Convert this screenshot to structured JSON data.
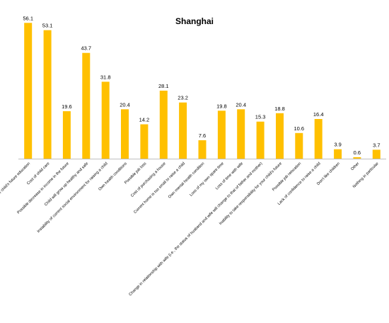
{
  "chart_data": {
    "type": "bar",
    "title": "Shanghai",
    "xlabel": "",
    "ylabel": "",
    "ylim": [
      0,
      60
    ],
    "grid": false,
    "legend": "none",
    "bar_color": "#FFC000",
    "axis_color": "#BFBFBF",
    "categories": [
      "High cost of child's future education",
      "Cost of child care",
      "Possible decrease in income in the future",
      "Child will grow up healthy and safe",
      "Instability of current social environment for raising a child",
      "Own health conditions",
      "Possible job loss",
      "Cost of purchasing a house",
      "Current home is too small to raise a child",
      "Own mental health condition",
      "Loss of my own spare time",
      "Loss of time with wife",
      "Change in relationship with wife (i.e., the status of husband and wife will change to that of father and mother)",
      "Inability to take responsibility for your child's future",
      "Possible job relocation",
      "Lack of confidence to raise a child",
      "Don't like children",
      "Other",
      "Nothing in particular"
    ],
    "values": [
      56.1,
      53.1,
      19.6,
      43.7,
      31.8,
      20.4,
      14.2,
      28.1,
      23.2,
      7.6,
      19.8,
      20.4,
      15.3,
      18.8,
      10.6,
      16.4,
      3.9,
      0.6,
      3.7
    ],
    "value_labels": [
      "56.1",
      "53.1",
      "19.6",
      "43.7",
      "31.8",
      "20.4",
      "14.2",
      "28.1",
      "23.2",
      "7.6",
      "19.8",
      "20.4",
      "15.3",
      "18.8",
      "10.6",
      "16.4",
      "3.9",
      "0.6",
      "3.7"
    ]
  }
}
